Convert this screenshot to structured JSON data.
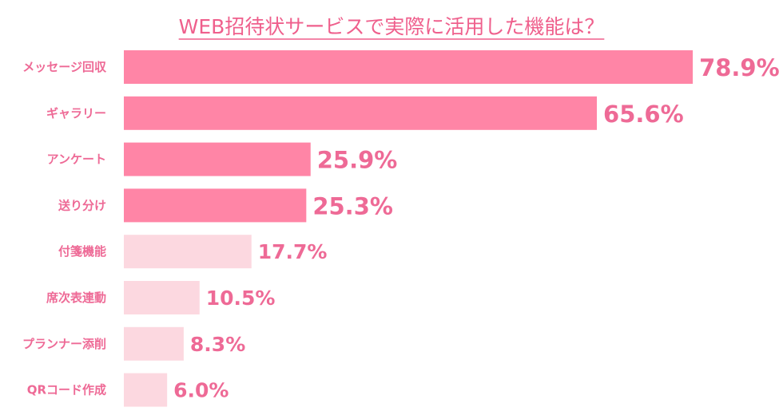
{
  "chart_data": {
    "type": "bar",
    "orientation": "horizontal",
    "title": "WEB招待状サービスで実際に活用した機能は？",
    "categories": [
      "メッセージ回収",
      "ギャラリー",
      "アンケート",
      "送り分け",
      "付箋機能",
      "席次表連動",
      "プランナー添削",
      "QRコード作成"
    ],
    "values": [
      78.9,
      65.6,
      25.9,
      25.3,
      17.7,
      10.5,
      8.3,
      6.0
    ],
    "value_labels": [
      "78.9%",
      "65.6%",
      "25.9%",
      "25.3%",
      "17.7%",
      "10.5%",
      "8.3%",
      "6.0%"
    ],
    "unit": "%",
    "xlim": [
      0,
      80
    ],
    "grid": false,
    "legend": "none",
    "colors": {
      "highlight": "#ff85a6",
      "normal": "#fcd8e0",
      "label": "#ee6a96",
      "title": "#ef5f8c"
    },
    "highlight_count": 4
  }
}
